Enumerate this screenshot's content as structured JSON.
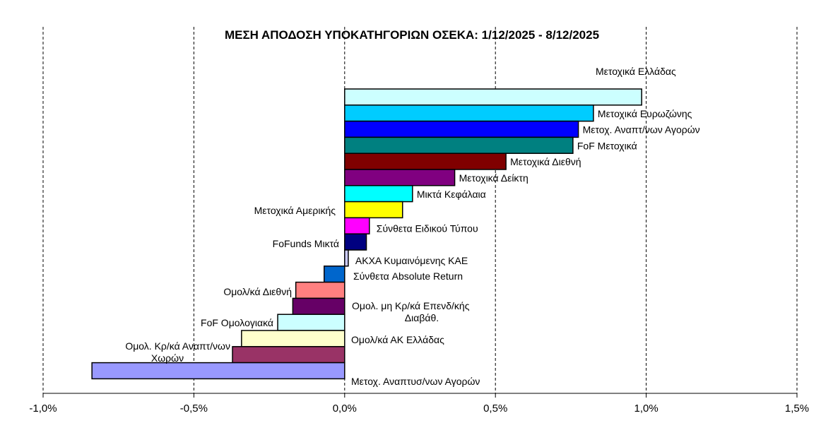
{
  "chart_data": {
    "type": "bar",
    "orientation": "horizontal",
    "title": "ΜΕΣΗ ΑΠΟΔΟΣΗ ΥΠΟΚΑΤΗΓΟΡΙΩΝ ΟΣΕΚΑ: 1/12/2025 - 8/12/2025",
    "xlabel": "",
    "ylabel": "",
    "xlim": [
      -1.0,
      1.5
    ],
    "x_ticks": [
      "-1,0%",
      "-0,5%",
      "0,0%",
      "0,5%",
      "1,0%",
      "1,5%"
    ],
    "grid": "vertical-dashed",
    "categories": [
      "Μετοχικά Ελλάδας",
      "Μετοχικά Ευρωζώνης",
      "Μετοχ. Αναπτ/νων Αγορών",
      "FoF Μετοχικά",
      "Μετοχικά Διεθνή",
      "Μετοχικά Δείκτη",
      "Μικτά Κεφάλαια",
      "Μετοχικά Αμερικής",
      "Σύνθετα Ειδικού Τύπου",
      "FoFunds Μικτά",
      "ΑΚΧΑ Κυμαινόμενης ΚΑΕ",
      "Σύνθετα Absolute Return",
      "Ομολ/κά Διεθνή",
      "Ομολ. μη Κρ/κά Επενδ/κής Διαβάθ.",
      "FoF Ομολογιακά",
      "Ομολ/κά ΑΚ Ελλάδας",
      "Ομολ. Κρ/κά Αναπτ/νων Χωρών",
      "Μετοχ. Αναπτυσ/νων Αγορών"
    ],
    "label_lines": [
      [
        "Μετοχικά Ελλάδας"
      ],
      [
        "Μετοχικά Ευρωζώνης"
      ],
      [
        "Μετοχ. Αναπτ/νων Αγορών"
      ],
      [
        "FoF Μετοχικά"
      ],
      [
        "Μετοχικά Διεθνή"
      ],
      [
        "Μετοχικά Δείκτη"
      ],
      [
        "Μικτά Κεφάλαια"
      ],
      [
        "Μετοχικά Αμερικής"
      ],
      [
        "Σύνθετα Ειδικού Τύπου"
      ],
      [
        "FoFunds Μικτά"
      ],
      [
        "ΑΚΧΑ Κυμαινόμενης ΚΑΕ"
      ],
      [
        "Σύνθετα Absolute Return"
      ],
      [
        "Ομολ/κά Διεθνή"
      ],
      [
        "Ομολ. μη Κρ/κά Επενδ/κής",
        "Διαβάθ."
      ],
      [
        "FoF Ομολογιακά"
      ],
      [
        "Ομολ/κά ΑΚ Ελλάδας"
      ],
      [
        "Ομολ. Κρ/κά Αναπτ/νων",
        "Χωρών"
      ],
      [
        "Μετοχ. Αναπτυσ/νων Αγορών"
      ]
    ],
    "values": [
      0.985,
      0.825,
      0.775,
      0.757,
      0.535,
      0.365,
      0.225,
      0.192,
      0.082,
      0.072,
      0.012,
      -0.068,
      -0.162,
      -0.172,
      -0.222,
      -0.342,
      -0.372,
      -0.838
    ],
    "colors": [
      "#CCFFFF",
      "#00CCFF",
      "#0000FF",
      "#008080",
      "#800000",
      "#800080",
      "#00FFFF",
      "#FFFF00",
      "#FF00FF",
      "#000080",
      "#CCCCFF",
      "#0066CC",
      "#FF8080",
      "#660066",
      "#CCFFFF",
      "#FFFFCC",
      "#993366",
      "#9999FF"
    ]
  }
}
